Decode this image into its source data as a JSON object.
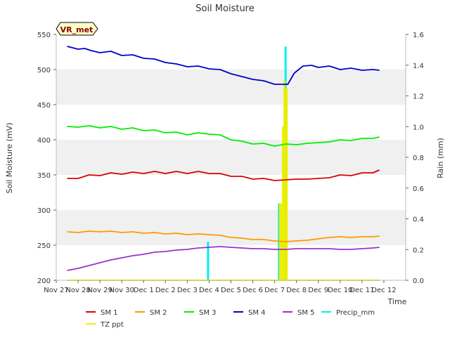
{
  "chart_data": {
    "type": "line",
    "title": "Soil Moisture",
    "xlabel": "Time",
    "ylabel": "Soil Moisture (mV)",
    "y2label": "Rain (mm)",
    "site_label": "VR_met",
    "ylim": [
      200,
      550
    ],
    "y2lim": [
      0.0,
      1.6
    ],
    "xlim": [
      0,
      16
    ],
    "x_tick_labels": [
      "Nov 27",
      "Nov 28",
      "Nov 29",
      "Nov 30",
      "Dec 1",
      "Dec 2",
      "Dec 3",
      "Dec 4",
      "Dec 5",
      "Dec 6",
      "Dec 7",
      "Dec 8",
      "Dec 9",
      "Dec 10",
      "Dec 11",
      "Dec 12"
    ],
    "y_ticks": [
      200,
      250,
      300,
      350,
      400,
      450,
      500,
      550
    ],
    "y2_ticks": [
      "0.0",
      "0.2",
      "0.4",
      "0.6",
      "0.8",
      "1.0",
      "1.2",
      "1.4",
      "1.6"
    ],
    "legend": [
      {
        "name": "SM 1",
        "color": "#dd0000"
      },
      {
        "name": "SM 2",
        "color": "#ff9900"
      },
      {
        "name": "SM 3",
        "color": "#00ee00"
      },
      {
        "name": "SM 4",
        "color": "#0000cc"
      },
      {
        "name": "SM 5",
        "color": "#9933cc"
      },
      {
        "name": "Precip_mm",
        "color": "#00eeee"
      },
      {
        "name": "TZ ppt",
        "color": "#eeee00"
      }
    ],
    "series": [
      {
        "name": "SM 1",
        "color": "#dd0000",
        "axis": "left",
        "x": [
          0.5,
          1,
          1.5,
          2,
          2.5,
          3,
          3.5,
          4,
          4.5,
          5,
          5.5,
          6,
          6.5,
          7,
          7.5,
          8,
          8.5,
          9,
          9.5,
          10,
          10.5,
          11,
          11.5,
          12,
          12.5,
          13,
          13.5,
          14,
          14.5,
          14.8
        ],
        "y": [
          345,
          345,
          350,
          349,
          353,
          351,
          354,
          352,
          355,
          352,
          355,
          352,
          355,
          352,
          352,
          348,
          348,
          344,
          345,
          342,
          343,
          344,
          344,
          345,
          346,
          350,
          349,
          353,
          353,
          357
        ]
      },
      {
        "name": "SM 2",
        "color": "#ff9900",
        "axis": "left",
        "x": [
          0.5,
          1,
          1.5,
          2,
          2.5,
          3,
          3.5,
          4,
          4.5,
          5,
          5.5,
          6,
          6.5,
          7,
          7.5,
          8,
          8.5,
          9,
          9.5,
          10,
          10.5,
          11,
          11.5,
          12,
          12.5,
          13,
          13.5,
          14,
          14.5,
          14.8
        ],
        "y": [
          269,
          268,
          270,
          269,
          270,
          268,
          269,
          267,
          268,
          266,
          267,
          265,
          266,
          265,
          264,
          261,
          260,
          258,
          258,
          256,
          255,
          256,
          257,
          259,
          261,
          262,
          261,
          262,
          262,
          263
        ]
      },
      {
        "name": "SM 3",
        "color": "#00ee00",
        "axis": "left",
        "x": [
          0.5,
          1,
          1.5,
          2,
          2.5,
          3,
          3.5,
          4,
          4.5,
          5,
          5.5,
          6,
          6.5,
          7,
          7.5,
          8,
          8.5,
          9,
          9.5,
          10,
          10.5,
          11,
          11.5,
          12,
          12.5,
          13,
          13.5,
          14,
          14.5,
          14.8
        ],
        "y": [
          419,
          418,
          420,
          417,
          419,
          415,
          417,
          413,
          414,
          410,
          411,
          407,
          410,
          408,
          407,
          400,
          398,
          394,
          395,
          391,
          394,
          393,
          395,
          396,
          397,
          400,
          399,
          402,
          402,
          404
        ]
      },
      {
        "name": "SM 4",
        "color": "#0000cc",
        "axis": "left",
        "x": [
          0.5,
          1,
          1.3,
          1.6,
          2,
          2.5,
          3,
          3.5,
          4,
          4.5,
          5,
          5.5,
          6,
          6.5,
          7,
          7.5,
          8,
          8.5,
          9,
          9.5,
          10,
          10.4,
          10.6,
          10.9,
          11.3,
          11.7,
          12,
          12.5,
          13,
          13.5,
          14,
          14.5,
          14.8
        ],
        "y": [
          533,
          529,
          530,
          527,
          524,
          526,
          520,
          521,
          516,
          515,
          510,
          508,
          504,
          505,
          501,
          500,
          494,
          490,
          486,
          484,
          479,
          479,
          479,
          495,
          505,
          506,
          503,
          505,
          500,
          502,
          499,
          500,
          499
        ]
      },
      {
        "name": "SM 5",
        "color": "#9933cc",
        "axis": "left",
        "x": [
          0.5,
          1,
          1.5,
          2,
          2.5,
          3,
          3.5,
          4,
          4.5,
          5,
          5.5,
          6,
          6.5,
          7,
          7.5,
          8,
          8.5,
          9,
          9.5,
          10,
          10.5,
          11,
          11.5,
          12,
          12.5,
          13,
          13.5,
          14,
          14.5,
          14.8
        ],
        "y": [
          214,
          217,
          221,
          225,
          229,
          232,
          235,
          237,
          240,
          241,
          243,
          244,
          246,
          247,
          248,
          247,
          246,
          245,
          245,
          244,
          244,
          245,
          245,
          245,
          245,
          244,
          244,
          245,
          246,
          247
        ]
      }
    ],
    "bars": [
      {
        "name": "Precip_mm",
        "color": "#00eeee",
        "x": [
          6.95,
          10.2,
          10.5
        ],
        "values": [
          0.25,
          0.5,
          1.52
        ]
      },
      {
        "name": "TZ ppt",
        "color": "#eeee00",
        "x": [
          10.25,
          10.3,
          10.38,
          10.45,
          10.55
        ],
        "values": [
          0.5,
          0.5,
          1.0,
          1.3,
          1.25
        ]
      }
    ],
    "tz_baseline": {
      "name": "TZ ppt",
      "value": 0.0,
      "x_range": [
        0.5,
        14.8
      ]
    }
  }
}
